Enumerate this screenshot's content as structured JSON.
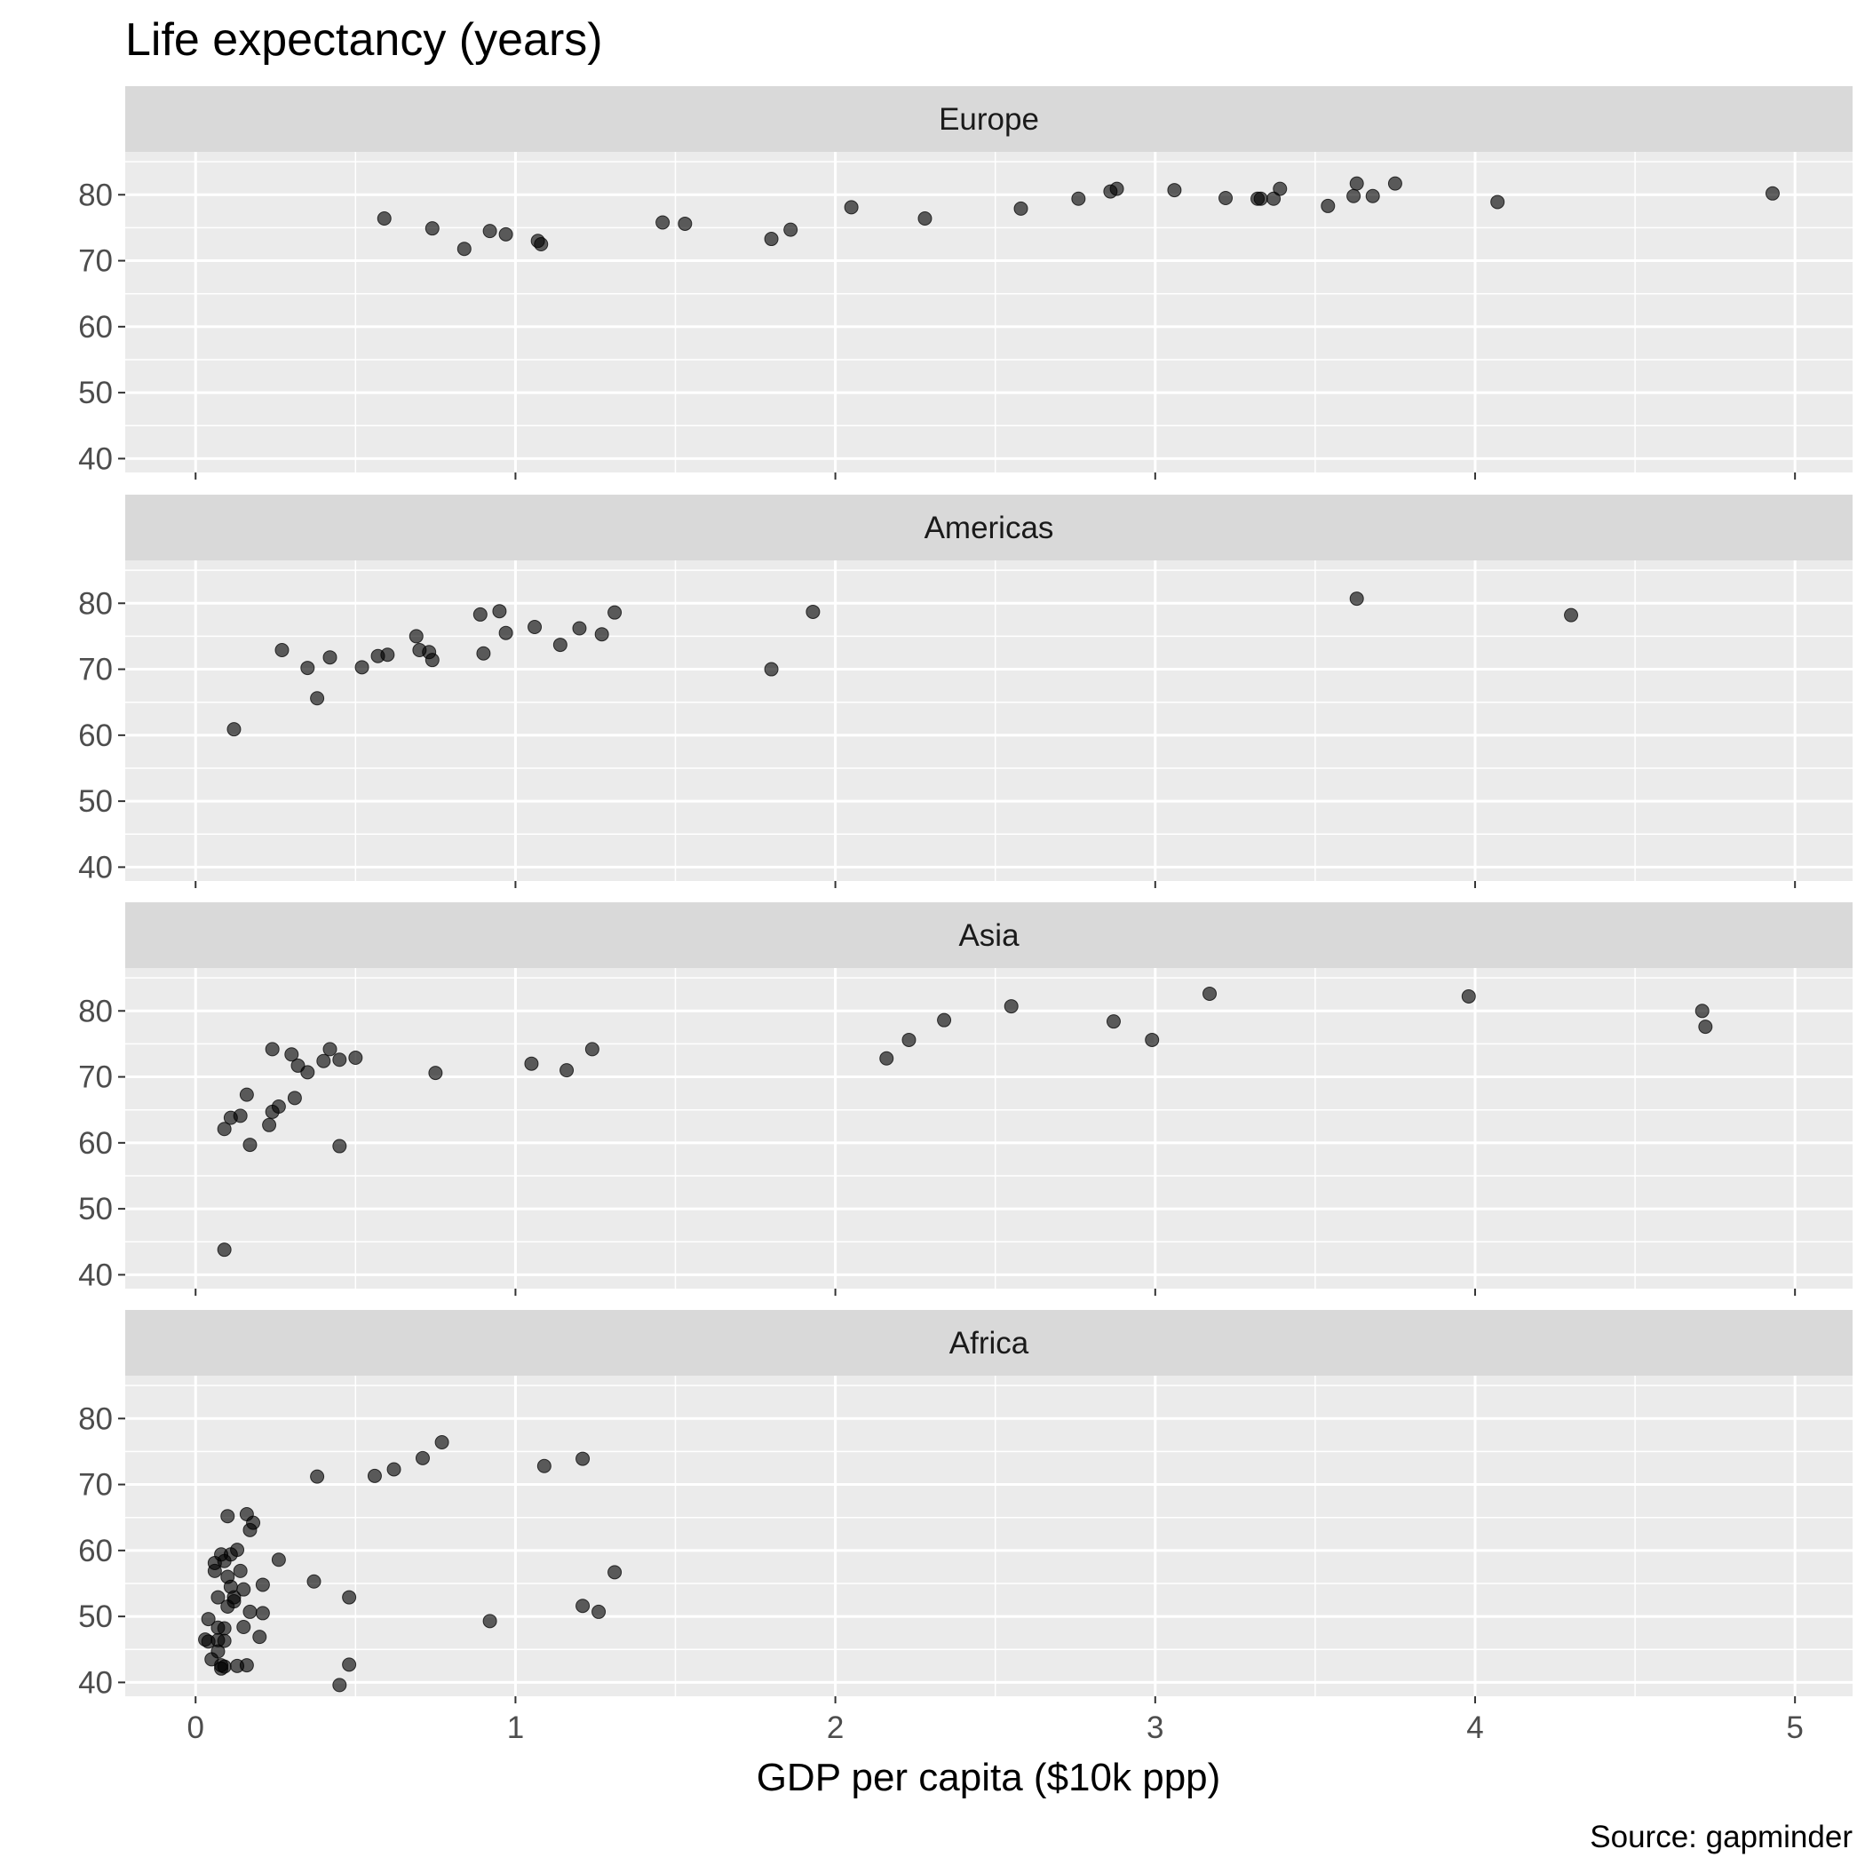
{
  "chart_data": {
    "type": "scatter",
    "title": "Life expectancy (years)",
    "xlabel": "GDP per capita ($10k ppp)",
    "ylabel": "",
    "caption": "Source: gapminder",
    "xlim": [
      -0.22,
      5.18
    ],
    "ylim": [
      37.9,
      86.5
    ],
    "x_ticks": [
      0,
      1,
      2,
      3,
      4,
      5
    ],
    "y_ticks": [
      40,
      50,
      60,
      70,
      80
    ],
    "grid": true,
    "point_color": "#000000",
    "point_opacity": 0.62,
    "panel_background": "#ebebeb",
    "strip_background": "#d9d9d9",
    "facets": [
      {
        "label": "Europe",
        "points": [
          [
            0.59,
            76.4
          ],
          [
            0.74,
            74.9
          ],
          [
            0.84,
            71.8
          ],
          [
            0.92,
            74.5
          ],
          [
            0.97,
            74.0
          ],
          [
            1.07,
            73.0
          ],
          [
            1.08,
            72.5
          ],
          [
            1.46,
            75.8
          ],
          [
            1.53,
            75.6
          ],
          [
            1.8,
            73.3
          ],
          [
            1.86,
            74.7
          ],
          [
            2.05,
            78.1
          ],
          [
            2.28,
            76.4
          ],
          [
            2.58,
            77.9
          ],
          [
            2.76,
            79.4
          ],
          [
            2.86,
            80.5
          ],
          [
            2.88,
            80.9
          ],
          [
            3.06,
            80.7
          ],
          [
            3.22,
            79.5
          ],
          [
            3.32,
            79.4
          ],
          [
            3.33,
            79.4
          ],
          [
            3.37,
            79.4
          ],
          [
            3.39,
            80.9
          ],
          [
            3.54,
            78.3
          ],
          [
            3.62,
            79.8
          ],
          [
            3.63,
            81.7
          ],
          [
            3.68,
            79.8
          ],
          [
            3.75,
            81.7
          ],
          [
            4.07,
            78.9
          ],
          [
            4.93,
            80.2
          ]
        ]
      },
      {
        "label": "Americas",
        "points": [
          [
            0.12,
            60.9
          ],
          [
            0.27,
            72.9
          ],
          [
            0.35,
            70.2
          ],
          [
            0.38,
            65.6
          ],
          [
            0.42,
            71.8
          ],
          [
            0.52,
            70.3
          ],
          [
            0.57,
            72.0
          ],
          [
            0.6,
            72.2
          ],
          [
            0.69,
            75.0
          ],
          [
            0.7,
            72.9
          ],
          [
            0.73,
            72.6
          ],
          [
            0.74,
            71.4
          ],
          [
            0.89,
            78.3
          ],
          [
            0.9,
            72.4
          ],
          [
            0.95,
            78.8
          ],
          [
            0.97,
            75.5
          ],
          [
            1.06,
            76.4
          ],
          [
            1.14,
            73.7
          ],
          [
            1.2,
            76.2
          ],
          [
            1.27,
            75.3
          ],
          [
            1.31,
            78.6
          ],
          [
            1.8,
            70.0
          ],
          [
            1.93,
            78.7
          ],
          [
            3.63,
            80.7
          ],
          [
            4.3,
            78.2
          ]
        ]
      },
      {
        "label": "Asia",
        "points": [
          [
            0.09,
            43.8
          ],
          [
            0.09,
            62.1
          ],
          [
            0.11,
            63.8
          ],
          [
            0.14,
            64.1
          ],
          [
            0.16,
            67.3
          ],
          [
            0.17,
            59.7
          ],
          [
            0.23,
            62.7
          ],
          [
            0.24,
            74.2
          ],
          [
            0.24,
            64.7
          ],
          [
            0.26,
            65.5
          ],
          [
            0.3,
            73.4
          ],
          [
            0.31,
            66.8
          ],
          [
            0.32,
            71.7
          ],
          [
            0.35,
            70.7
          ],
          [
            0.4,
            72.4
          ],
          [
            0.42,
            74.2
          ],
          [
            0.45,
            59.5
          ],
          [
            0.45,
            72.6
          ],
          [
            0.5,
            72.9
          ],
          [
            0.75,
            70.6
          ],
          [
            1.05,
            72.0
          ],
          [
            1.16,
            71.0
          ],
          [
            1.24,
            74.2
          ],
          [
            2.16,
            72.8
          ],
          [
            2.23,
            75.6
          ],
          [
            2.34,
            78.6
          ],
          [
            2.55,
            80.7
          ],
          [
            2.87,
            78.4
          ],
          [
            2.99,
            75.6
          ],
          [
            3.17,
            82.6
          ],
          [
            3.98,
            82.2
          ],
          [
            4.71,
            80.0
          ],
          [
            4.72,
            77.6
          ]
        ]
      },
      {
        "label": "Africa",
        "points": [
          [
            0.03,
            46.5
          ],
          [
            0.04,
            49.6
          ],
          [
            0.04,
            46.2
          ],
          [
            0.05,
            43.5
          ],
          [
            0.06,
            58.1
          ],
          [
            0.06,
            56.9
          ],
          [
            0.07,
            52.9
          ],
          [
            0.07,
            46.4
          ],
          [
            0.07,
            44.7
          ],
          [
            0.07,
            48.3
          ],
          [
            0.08,
            59.4
          ],
          [
            0.08,
            42.6
          ],
          [
            0.08,
            42.1
          ],
          [
            0.09,
            58.4
          ],
          [
            0.09,
            46.3
          ],
          [
            0.09,
            48.2
          ],
          [
            0.09,
            42.4
          ],
          [
            0.1,
            65.2
          ],
          [
            0.1,
            56.0
          ],
          [
            0.1,
            51.5
          ],
          [
            0.11,
            59.4
          ],
          [
            0.11,
            54.5
          ],
          [
            0.12,
            52.3
          ],
          [
            0.12,
            52.9
          ],
          [
            0.13,
            42.5
          ],
          [
            0.13,
            60.1
          ],
          [
            0.14,
            56.9
          ],
          [
            0.15,
            54.1
          ],
          [
            0.15,
            48.4
          ],
          [
            0.16,
            42.6
          ],
          [
            0.16,
            65.5
          ],
          [
            0.17,
            50.7
          ],
          [
            0.17,
            63.1
          ],
          [
            0.18,
            64.2
          ],
          [
            0.2,
            46.9
          ],
          [
            0.21,
            54.8
          ],
          [
            0.21,
            50.5
          ],
          [
            0.26,
            58.6
          ],
          [
            0.37,
            55.3
          ],
          [
            0.38,
            71.2
          ],
          [
            0.45,
            39.6
          ],
          [
            0.48,
            42.7
          ],
          [
            0.48,
            52.9
          ],
          [
            0.56,
            71.3
          ],
          [
            0.62,
            72.3
          ],
          [
            0.71,
            74.0
          ],
          [
            0.77,
            76.4
          ],
          [
            0.92,
            49.3
          ],
          [
            1.09,
            72.8
          ],
          [
            1.21,
            73.9
          ],
          [
            1.21,
            51.6
          ],
          [
            1.26,
            50.7
          ],
          [
            1.31,
            56.7
          ]
        ]
      }
    ]
  }
}
